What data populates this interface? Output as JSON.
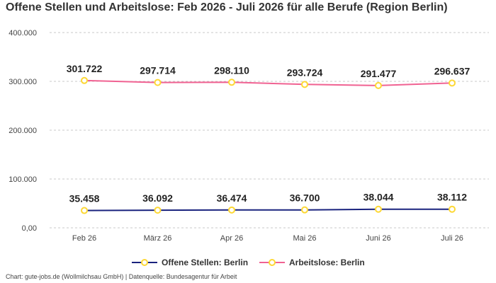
{
  "chart_data": {
    "type": "line",
    "title": "Offene Stellen und Arbeitslose: Feb 2026 - Juli 2026 für alle Berufe (Region Berlin)",
    "categories": [
      "Feb 26",
      "März 26",
      "Apr 26",
      "Mai 26",
      "Juni 26",
      "Juli 26"
    ],
    "y_ticks": [
      "0,00",
      "100.000",
      "200.000",
      "300.000",
      "400.000"
    ],
    "ylim": [
      0,
      400000
    ],
    "grid": true,
    "legend_position": "bottom",
    "series": [
      {
        "name": "Offene Stellen: Berlin",
        "color": "#1a237e",
        "values": [
          35458,
          36092,
          36474,
          36700,
          38044,
          38112
        ],
        "labels": [
          "35.458",
          "36.092",
          "36.474",
          "36.700",
          "38.044",
          "38.112"
        ]
      },
      {
        "name": "Arbeitslose: Berlin",
        "color": "#f06292",
        "values": [
          301722,
          297714,
          298110,
          293724,
          291477,
          296637
        ],
        "labels": [
          "301.722",
          "297.714",
          "298.110",
          "293.724",
          "291.477",
          "296.637"
        ]
      }
    ],
    "marker_color": "#fdd835"
  },
  "source": "Chart: gute-jobs.de (Wollmilchsau GmbH) | Datenquelle: Bundesagentur für Arbeit"
}
